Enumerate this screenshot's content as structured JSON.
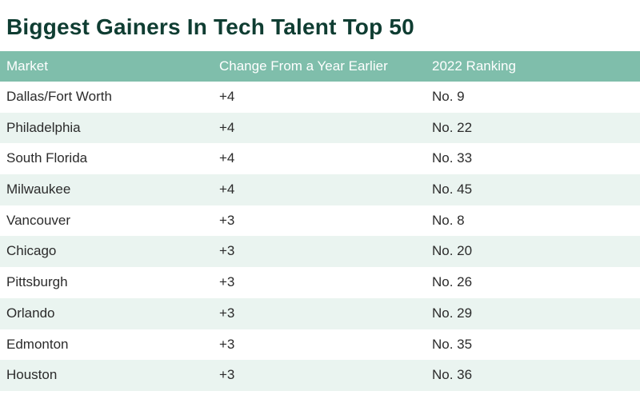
{
  "chart_data": {
    "type": "table",
    "title": "Biggest Gainers In Tech Talent Top 50",
    "columns": [
      "Market",
      "Change From a Year Earlier",
      "2022 Ranking"
    ],
    "rows": [
      [
        "Dallas/Fort Worth",
        "+4",
        "No. 9"
      ],
      [
        "Philadelphia",
        "+4",
        "No. 22"
      ],
      [
        "South Florida",
        "+4",
        "No. 33"
      ],
      [
        "Milwaukee",
        "+4",
        "No. 45"
      ],
      [
        "Vancouver",
        "+3",
        "No. 8"
      ],
      [
        "Chicago",
        "+3",
        "No. 20"
      ],
      [
        "Pittsburgh",
        "+3",
        "No. 26"
      ],
      [
        "Orlando",
        "+3",
        "No. 29"
      ],
      [
        "Edmonton",
        "+3",
        "No. 35"
      ],
      [
        "Houston",
        "+3",
        "No. 36"
      ]
    ],
    "colors": {
      "title": "#0f3d32",
      "header_bg": "#7fbeab",
      "header_text": "#ffffff",
      "alt_row_bg": "#eaf4f0"
    }
  }
}
